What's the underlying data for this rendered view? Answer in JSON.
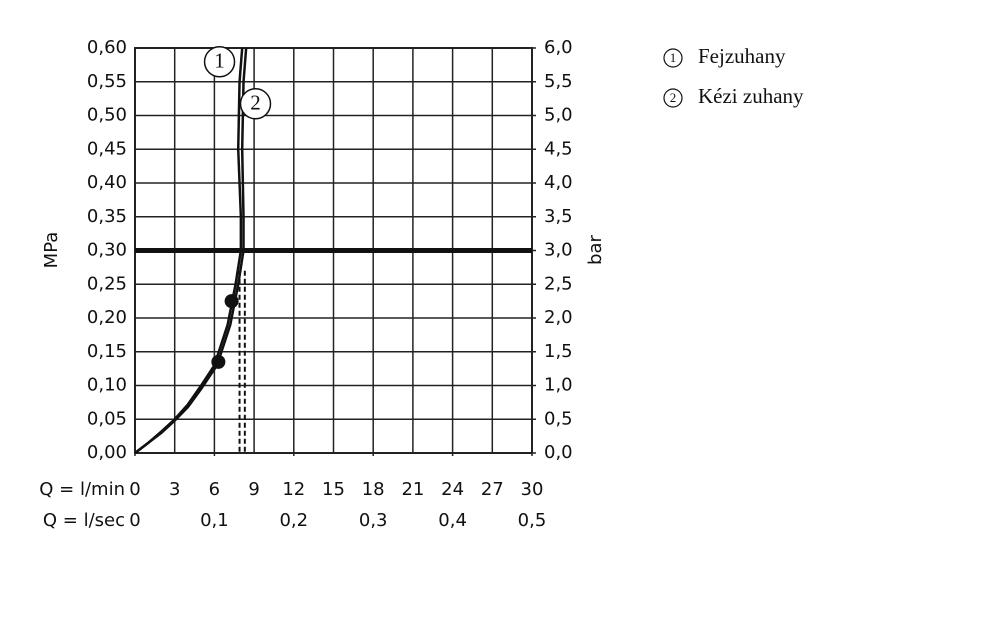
{
  "chart_data": {
    "type": "line",
    "y_label": "MPa",
    "y2_label": "bar",
    "x_label": "Q = l/min",
    "x2_label": "Q = l/sec",
    "xlim": [
      0,
      30
    ],
    "xticks": [
      0,
      3,
      6,
      9,
      12,
      15,
      18,
      21,
      24,
      27,
      30
    ],
    "x2lim": [
      0,
      0.5
    ],
    "x2ticks": [
      0,
      {
        "value": 0.1,
        "label": "0,1"
      },
      {
        "value": 0.2,
        "label": "0,2"
      },
      {
        "value": 0.3,
        "label": "0,3"
      },
      {
        "value": 0.4,
        "label": "0,4"
      },
      {
        "value": 0.5,
        "label": "0,5"
      }
    ],
    "ylim": [
      0,
      0.6
    ],
    "yticks": [
      {
        "value": 0,
        "label": "0,00"
      },
      {
        "value": 0.05,
        "label": "0,05"
      },
      {
        "value": 0.1,
        "label": "0,10"
      },
      {
        "value": 0.15,
        "label": "0,15"
      },
      {
        "value": 0.2,
        "label": "0,20"
      },
      {
        "value": 0.25,
        "label": "0,25"
      },
      {
        "value": 0.3,
        "label": "0,30"
      },
      {
        "value": 0.35,
        "label": "0,35"
      },
      {
        "value": 0.4,
        "label": "0,40"
      },
      {
        "value": 0.45,
        "label": "0,45"
      },
      {
        "value": 0.5,
        "label": "0,50"
      },
      {
        "value": 0.55,
        "label": "0,55"
      },
      {
        "value": 0.6,
        "label": "0,60"
      }
    ],
    "y2lim": [
      0,
      6
    ],
    "y2ticks": [
      {
        "value": 0,
        "label": "0,0"
      },
      {
        "value": 0.5,
        "label": "0,5"
      },
      {
        "value": 1,
        "label": "1,0"
      },
      {
        "value": 1.5,
        "label": "1,5"
      },
      {
        "value": 2,
        "label": "2,0"
      },
      {
        "value": 2.5,
        "label": "2,5"
      },
      {
        "value": 3,
        "label": "3,0"
      },
      {
        "value": 3.5,
        "label": "3,5"
      },
      {
        "value": 4,
        "label": "4,0"
      },
      {
        "value": 4.5,
        "label": "4,5"
      },
      {
        "value": 5,
        "label": "5,0"
      },
      {
        "value": 5.5,
        "label": "5,5"
      },
      {
        "value": 6,
        "label": "6,0"
      }
    ],
    "grid": true,
    "reference_y": 0.3,
    "series": [
      {
        "name": "Fejzuhany",
        "number": "1",
        "color": "#111111",
        "x": [
          0,
          1,
          2,
          3,
          4,
          5,
          6,
          7,
          7.6,
          8.0,
          8.0,
          7.8,
          7.9,
          8.1
        ],
        "values": [
          0,
          0.015,
          0.032,
          0.05,
          0.072,
          0.1,
          0.13,
          0.19,
          0.25,
          0.3,
          0.35,
          0.45,
          0.55,
          0.6
        ]
      },
      {
        "name": "Kézi zuhany",
        "number": "2",
        "color": "#111111",
        "x": [
          0,
          1,
          2,
          3,
          4,
          5,
          6.2,
          7.2,
          7.8,
          8.2,
          8.2,
          8.1,
          8.2,
          8.4
        ],
        "values": [
          0,
          0.015,
          0.03,
          0.048,
          0.068,
          0.095,
          0.13,
          0.19,
          0.25,
          0.3,
          0.35,
          0.45,
          0.55,
          0.6
        ]
      }
    ],
    "markers": {
      "x": [
        6.3,
        7.3
      ],
      "values": [
        0.135,
        0.225
      ]
    },
    "dashed_x": [
      7.9,
      8.3
    ],
    "dashed_top": 0.27
  }
}
